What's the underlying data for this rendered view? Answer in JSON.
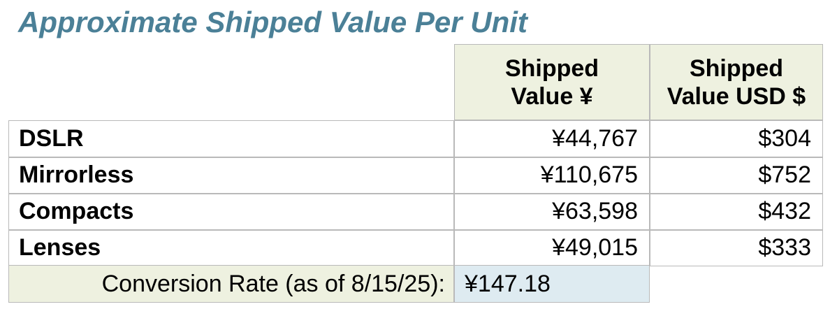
{
  "title": "Approximate Shipped Value Per Unit",
  "table": {
    "header": [
      "Shipped\nValue ¥",
      "Shipped\nValue USD $"
    ],
    "rows": [
      [
        "DSLR",
        "¥44,767",
        "$304"
      ],
      [
        "Mirrorless",
        "¥110,675",
        "$752"
      ],
      [
        "Compacts",
        "¥63,598",
        "$432"
      ],
      [
        "Lenses",
        "¥49,015",
        "$333"
      ]
    ],
    "footer": {
      "label": "Conversion Rate (as of 8/15/25):",
      "value": "¥147.18"
    }
  }
}
